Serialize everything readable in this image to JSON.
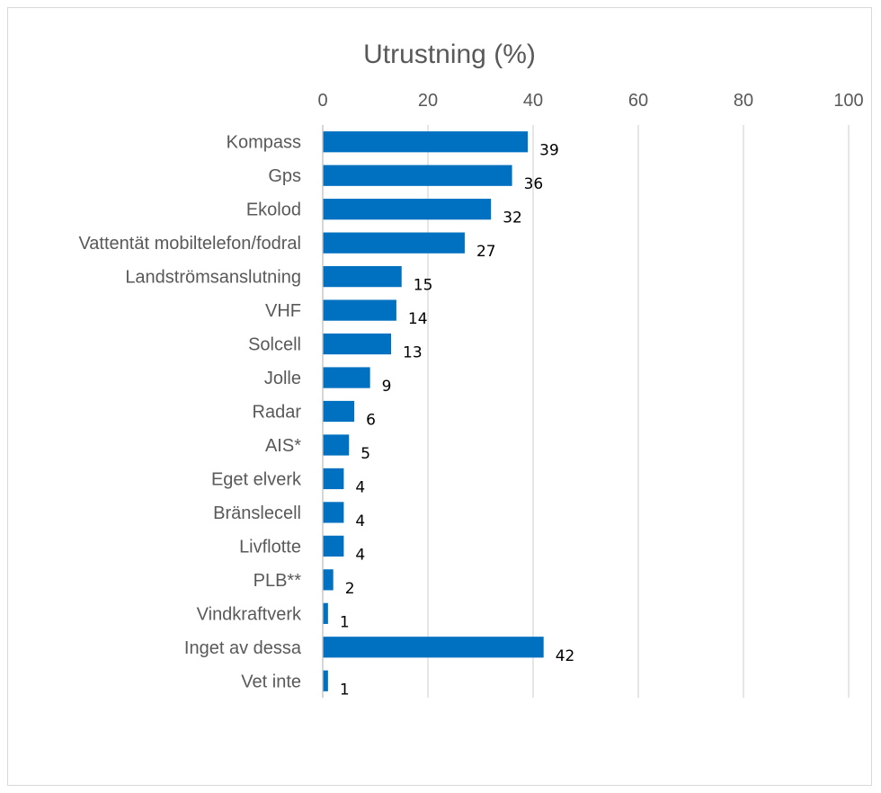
{
  "chart_data": {
    "type": "bar",
    "orientation": "horizontal",
    "title": "Utrustning (%)",
    "xlim": [
      0,
      100
    ],
    "xticks": [
      0,
      20,
      40,
      60,
      80,
      100
    ],
    "grid": true,
    "legend": "none",
    "bar_color": "#0070c0",
    "categories": [
      "Kompass",
      "Gps",
      "Ekolod",
      "Vattentät mobiltelefon/fodral",
      "Landströmsanslutning",
      "VHF",
      "Solcell",
      "Jolle",
      "Radar",
      "AIS*",
      "Eget elverk",
      "Bränslecell",
      "Livflotte",
      "PLB**",
      "Vindkraftverk",
      "Inget av dessa",
      "Vet inte"
    ],
    "values": [
      39,
      36,
      32,
      27,
      15,
      14,
      13,
      9,
      6,
      5,
      4,
      4,
      4,
      2,
      1,
      42,
      1
    ]
  }
}
